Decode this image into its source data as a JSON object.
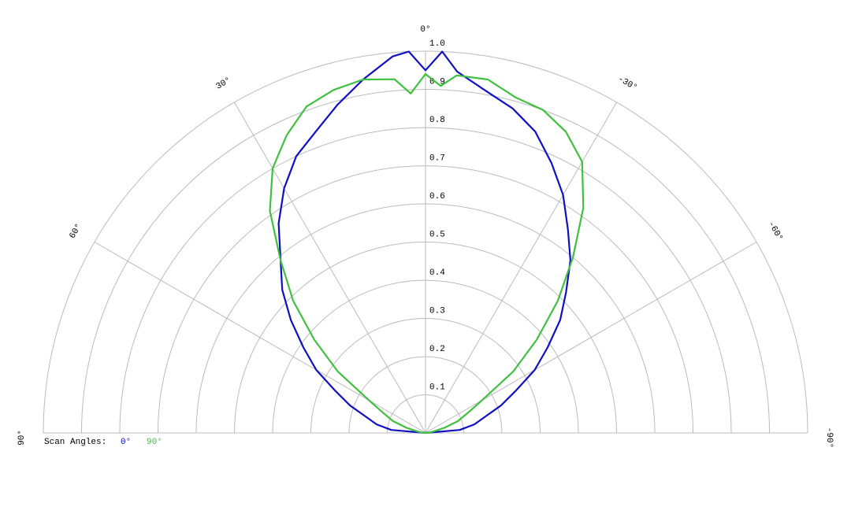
{
  "chart_data": {
    "type": "polar",
    "x": [
      90,
      85,
      80,
      75,
      70,
      65,
      60,
      55,
      50,
      45,
      40,
      35,
      30,
      25,
      20,
      15,
      10,
      5,
      2.5,
      0,
      -2.5,
      -5,
      -10,
      -15,
      -20,
      -25,
      -30,
      -35,
      -40,
      -45,
      -50,
      -55,
      -60,
      -65,
      -70,
      -75,
      -80,
      -85,
      -90
    ],
    "xlim": [
      90,
      -90
    ],
    "xticks": [
      {
        "value": 90,
        "label": "90°"
      },
      {
        "value": 60,
        "label": "60°"
      },
      {
        "value": 30,
        "label": "30°"
      },
      {
        "value": 0,
        "label": "0°"
      },
      {
        "value": -30,
        "label": "-30°"
      },
      {
        "value": -60,
        "label": "-60°"
      },
      {
        "value": -90,
        "label": "-90°"
      }
    ],
    "ylim": [
      0,
      1
    ],
    "yticks": [
      0.1,
      0.2,
      0.3,
      0.4,
      0.5,
      0.6,
      0.7,
      0.8,
      0.9,
      {
        "value": 1,
        "label": "1.0"
      }
    ],
    "legend_title": "Scan Angles:",
    "series": [
      {
        "name": "0°",
        "color": "#1010c0",
        "values": [
          0,
          0.09,
          0.13,
          0.16,
          0.21,
          0.26,
          0.33,
          0.39,
          0.46,
          0.53,
          0.59,
          0.67,
          0.74,
          0.8,
          0.84,
          0.89,
          0.94,
          0.99,
          1.0,
          0.95,
          1.0,
          0.95,
          0.91,
          0.88,
          0.84,
          0.78,
          0.72,
          0.65,
          0.59,
          0.52,
          0.46,
          0.39,
          0.33,
          0.26,
          0.21,
          0.16,
          0.13,
          0.09,
          0
        ]
      },
      {
        "name": "90°",
        "color": "#40c040",
        "values": [
          0,
          0.01,
          0.02,
          0.05,
          0.09,
          0.12,
          0.17,
          0.28,
          0.38,
          0.49,
          0.59,
          0.71,
          0.8,
          0.86,
          0.91,
          0.93,
          0.94,
          0.93,
          0.89,
          0.94,
          0.91,
          0.94,
          0.94,
          0.91,
          0.9,
          0.87,
          0.82,
          0.72,
          0.6,
          0.49,
          0.38,
          0.28,
          0.17,
          0.12,
          0.09,
          0.05,
          0.02,
          0.01,
          0
        ]
      }
    ]
  }
}
